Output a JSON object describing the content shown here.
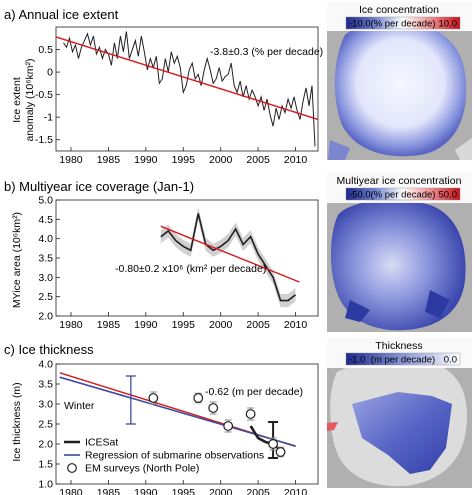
{
  "panels": {
    "a": {
      "title": "a) Annual ice extent",
      "ylabel_line1": "Ice extent",
      "ylabel_line2": "anomaly (10⁶km²)",
      "trend_text": "-3.8±0.3 (% per decade)",
      "map_title": "Ice concentration",
      "cb_min": "-10.0",
      "cb_unit": "(% per decade)",
      "cb_max": "10.0"
    },
    "b": {
      "title": "b) Multiyear ice coverage (Jan-1)",
      "ylabel_line1": "MYice area (10⁶km²)",
      "trend_text": "-0.80±0.2 x10⁶ (km² per decade)",
      "map_title": "Multiyear ice concentration",
      "cb_min": "-50.0",
      "cb_unit": "(% per decade)",
      "cb_max": "50.0"
    },
    "c": {
      "title": "c) Ice thickness",
      "ylabel_line1": "Ice thickness (m)",
      "trend_text": "-0.62 (m per decade)",
      "season_label": "Winter",
      "map_title": "Thickness",
      "cb_min": "-1.0",
      "cb_unit": "(m per decade)",
      "cb_max": "0.0",
      "legend": {
        "icesat": "ICESat",
        "submarine": "Regression of submarine observations",
        "em": "EM surveys (North Pole)"
      }
    }
  },
  "colors": {
    "series": "#231f20",
    "trend": "#d7191c",
    "uncertainty": "#c8c8c8",
    "submarine": "#3b4ba0",
    "map_blue": "#3140a8",
    "map_red": "#d6242a",
    "land": "#b0b0b0"
  },
  "chart_data": [
    {
      "type": "line",
      "title": "a) Annual ice extent",
      "ylabel": "Ice extent anomaly (10⁶km²)",
      "xlim": [
        1978,
        2013
      ],
      "ylim": [
        -1.75,
        1.0
      ],
      "xticks": [
        1980,
        1985,
        1990,
        1995,
        2000,
        2005,
        2010
      ],
      "yticks": [
        0.5,
        0,
        -0.5,
        -1,
        -1.5
      ],
      "series": [
        {
          "x": [
            1979,
            1979.4,
            1979.8,
            1980.2,
            1980.6,
            1981.0,
            1981.4,
            1981.8,
            1982.2,
            1982.6,
            1983.0,
            1983.4,
            1983.8,
            1984.2,
            1984.6,
            1985.0,
            1985.4,
            1985.8,
            1986.2,
            1986.6,
            1987.0,
            1987.4,
            1987.8,
            1988.2,
            1988.6,
            1989.0,
            1989.4,
            1989.8,
            1990.2,
            1990.6,
            1991.0,
            1991.4,
            1991.8,
            1992.2,
            1992.6,
            1993.0,
            1993.4,
            1993.8,
            1994.2,
            1994.6,
            1995.0,
            1995.4,
            1995.8,
            1996.2,
            1996.6,
            1997.0,
            1997.4,
            1997.8,
            1998.2,
            1998.6,
            1999.0,
            1999.4,
            1999.8,
            2000.2,
            2000.6,
            2001.0,
            2001.4,
            2001.8,
            2002.2,
            2002.6,
            2003.0,
            2003.4,
            2003.8,
            2004.2,
            2004.6,
            2005.0,
            2005.4,
            2005.8,
            2006.2,
            2006.6,
            2007.0,
            2007.4,
            2007.8,
            2008.2,
            2008.6,
            2009.0,
            2009.4,
            2009.8,
            2010.2,
            2010.6,
            2011.0,
            2011.4,
            2011.8,
            2012.2,
            2012.6
          ],
          "y": [
            0.65,
            0.55,
            0.75,
            0.45,
            0.6,
            0.3,
            0.55,
            0.7,
            0.85,
            0.6,
            0.8,
            0.4,
            0.55,
            0.3,
            0.5,
            0.4,
            0.15,
            0.65,
            0.3,
            0.8,
            0.45,
            0.9,
            0.3,
            0.5,
            0.7,
            0.35,
            0.8,
            0.45,
            0.05,
            0.3,
            0.1,
            0.35,
            -0.25,
            -0.15,
            0.3,
            0.0,
            0.45,
            0.2,
            0.35,
            0.1,
            -0.45,
            -0.3,
            0.05,
            0.2,
            -0.15,
            -0.05,
            -0.3,
            0.05,
            0.3,
            0.05,
            -0.25,
            -0.15,
            0.1,
            -0.2,
            -0.1,
            -0.05,
            0.2,
            -0.3,
            -0.45,
            -0.2,
            -0.55,
            -0.3,
            -0.6,
            -0.4,
            -0.55,
            -0.75,
            -0.55,
            -0.85,
            -0.6,
            -0.95,
            -1.2,
            -0.8,
            -1.05,
            -0.75,
            -0.9,
            -0.6,
            -0.8,
            -0.55,
            -0.85,
            -1.05,
            -0.65,
            -0.35,
            -0.75,
            -0.3,
            -1.65
          ]
        }
      ],
      "trend": {
        "x": [
          1978,
          2013
        ],
        "y": [
          0.78,
          -1.05
        ]
      }
    },
    {
      "type": "line",
      "title": "b) Multiyear ice coverage (Jan-1)",
      "ylabel": "MYice area (10⁶km²)",
      "xlim": [
        1978,
        2013
      ],
      "ylim": [
        2.0,
        5.0
      ],
      "xticks": [
        1980,
        1985,
        1990,
        1995,
        2000,
        2005,
        2010
      ],
      "yticks": [
        5.0,
        4.5,
        4.0,
        3.5,
        3.0,
        2.5,
        2.0
      ],
      "series": [
        {
          "x": [
            1992,
            1993,
            1994,
            1995,
            1996,
            1997,
            1998,
            1999,
            2000,
            2001,
            2002,
            2003,
            2004,
            2005,
            2006,
            2007,
            2008,
            2009,
            2010
          ],
          "y": [
            4.05,
            4.2,
            3.95,
            3.8,
            3.7,
            4.65,
            3.85,
            3.7,
            3.8,
            3.95,
            4.25,
            3.85,
            4.05,
            3.6,
            3.3,
            3.0,
            2.4,
            2.4,
            2.55
          ]
        }
      ],
      "trend": {
        "x": [
          1992,
          2010.5
        ],
        "y": [
          4.32,
          2.88
        ]
      }
    },
    {
      "type": "line",
      "title": "c) Ice thickness",
      "ylabel": "Ice thickness (m)",
      "xlim": [
        1978,
        2013
      ],
      "ylim": [
        1.0,
        4.0
      ],
      "xticks": [
        1980,
        1985,
        1990,
        1995,
        2000,
        2005,
        2010
      ],
      "yticks": [
        4.0,
        3.5,
        3.0,
        2.5,
        2.0,
        1.5,
        1.0
      ],
      "trend": {
        "x": [
          1978.5,
          2010
        ],
        "y": [
          3.78,
          1.94
        ]
      },
      "submarine_regression": {
        "x": [
          1978.5,
          2010
        ],
        "y": [
          3.67,
          1.95
        ]
      },
      "submarine_errorbar": {
        "x": 1988,
        "y": 3.1,
        "low": 2.5,
        "high": 3.7
      },
      "icesat": {
        "x": [
          2004,
          2005,
          2006,
          2007,
          2008
        ],
        "y": [
          2.45,
          2.15,
          2.05,
          2.0,
          1.85
        ],
        "errorbar": {
          "x": 2007,
          "y": 2.1,
          "low": 1.65,
          "high": 2.55
        }
      },
      "em_surveys": [
        {
          "x": 1991,
          "y": 3.15,
          "err": 0.15
        },
        {
          "x": 1997,
          "y": 3.15,
          "err": 0.12
        },
        {
          "x": 1999,
          "y": 2.9,
          "err": 0.15
        },
        {
          "x": 2001,
          "y": 2.45,
          "err": 0.15
        },
        {
          "x": 2004,
          "y": 2.75,
          "err": 0.15
        },
        {
          "x": 2007,
          "y": 2.0,
          "err": 0.15
        },
        {
          "x": 2008,
          "y": 1.8,
          "err": 0.12
        }
      ]
    }
  ]
}
